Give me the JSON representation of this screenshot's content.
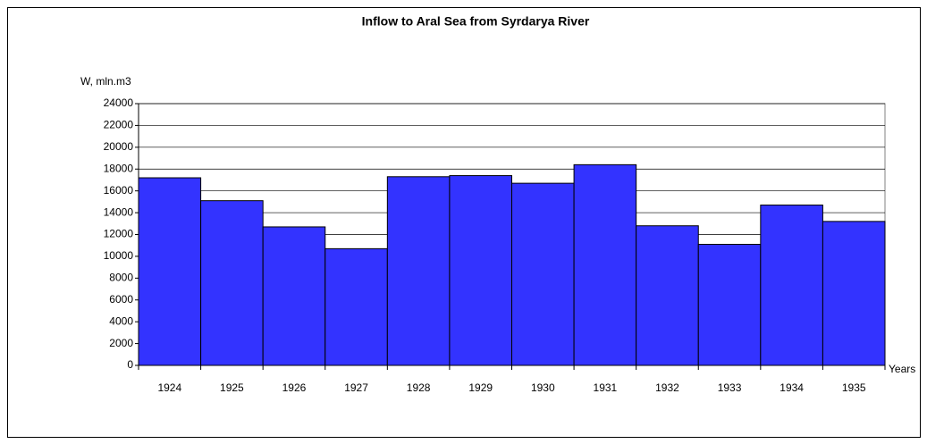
{
  "chart_data": {
    "type": "bar",
    "title": "Inflow to Aral Sea from Syrdarya River",
    "y_label": "W, mln.m3",
    "x_label": "Years",
    "categories": [
      "1924",
      "1925",
      "1926",
      "1927",
      "1928",
      "1929",
      "1930",
      "1931",
      "1932",
      "1933",
      "1934",
      "1935"
    ],
    "values": [
      17200,
      15100,
      12700,
      10700,
      17300,
      17400,
      16700,
      18400,
      12800,
      11100,
      14700,
      13200
    ],
    "color": "#3333ff",
    "ylim": [
      0,
      24000
    ],
    "yticks": [
      0,
      2000,
      4000,
      6000,
      8000,
      10000,
      12000,
      14000,
      16000,
      18000,
      20000,
      22000,
      24000
    ],
    "grid": true
  }
}
